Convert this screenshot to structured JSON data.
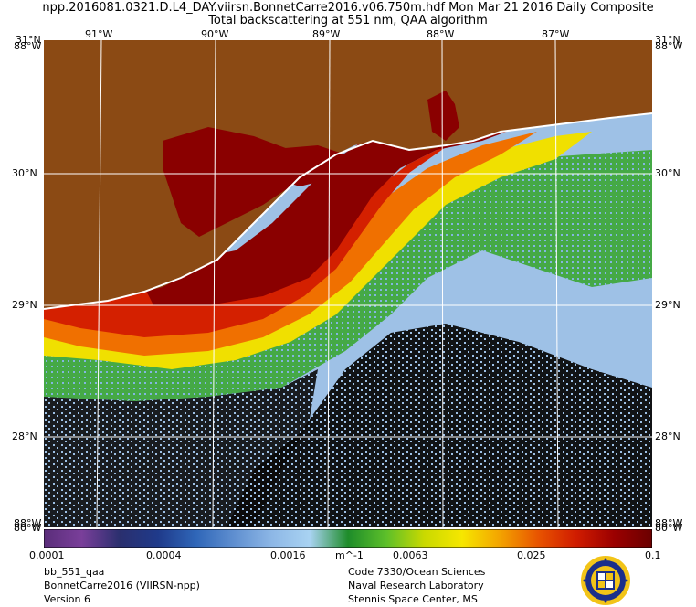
{
  "header": {
    "line1": "npp.2016081.0321.D.L4_DAY.viirsn.BonnetCarre2016.v06.750m.hdf   Mon Mar 21 2016 Daily Composite",
    "line2": "Total backscattering at 551 nm, QAA algorithm"
  },
  "axes": {
    "top_lon": [
      "91°W",
      "90°W",
      "89°W",
      "88°W",
      "87°W"
    ],
    "lat_labels": [
      "30°N",
      "29°N",
      "28°N"
    ],
    "corner_top_left_a": "31°N",
    "corner_top_left_b": "88°W",
    "corner_top_right_a": "31°N",
    "corner_top_right_b": "88°W",
    "corner_bottom_left_a": "88°W",
    "corner_bottom_left_b": "80°W",
    "corner_bottom_right_a": "88°W",
    "corner_bottom_right_b": "80°W"
  },
  "colorbar": {
    "ticks": [
      "0.0001",
      "0.0004",
      "0.0016",
      "0.0063",
      "0.025",
      "0.1"
    ],
    "unit": "m^-1",
    "colors": [
      "#5a2d7a",
      "#7a3f9a",
      "#2a2f6e",
      "#1f3a8a",
      "#2f66b8",
      "#5f8fd0",
      "#8db7e6",
      "#a9d3f2",
      "#1e8c2a",
      "#5cbf2a",
      "#c9d900",
      "#f6e700",
      "#f3a300",
      "#e85400",
      "#d01c00",
      "#9b0000",
      "#6a0000"
    ]
  },
  "footer": {
    "left": [
      "bb_551_qaa",
      "BonnetCarre2016 (VIIRSN-npp)",
      "Version 6"
    ],
    "right": [
      "Code 7330/Ocean Sciences",
      "Naval Research Laboratory",
      "Stennis Space Center, MS"
    ]
  },
  "map_colors": {
    "land": "#8b4a14",
    "shelf_water": "#8a0000",
    "plume_red": "#d42000",
    "plume_orange": "#f07000",
    "plume_yellow": "#f0e000",
    "plume_green": "#35a52a",
    "offshore": "#9ec1e6",
    "cloud_mask": "#000000",
    "coastline": "#ffffff"
  }
}
